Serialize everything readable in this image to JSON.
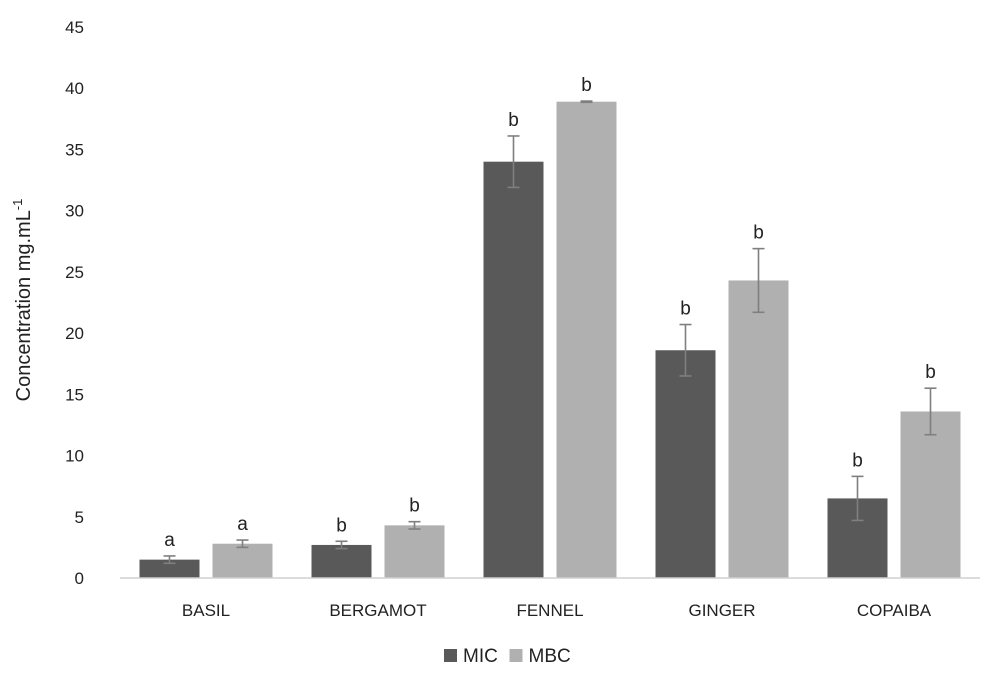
{
  "chart_data": {
    "type": "bar",
    "title": "",
    "xlabel": "",
    "ylabel": "Concentration mg.mL",
    "ylabel_superscript": "-1",
    "ylim": [
      0,
      45
    ],
    "yticks": [
      0,
      5,
      10,
      15,
      20,
      25,
      30,
      35,
      40,
      45
    ],
    "grid": false,
    "legend_position": "bottom",
    "categories": [
      "BASIL",
      "BERGAMOT",
      "FENNEL",
      "GINGER",
      "COPAIBA"
    ],
    "series": [
      {
        "name": "MIC",
        "color": "#595959",
        "values": [
          1.5,
          2.7,
          34.0,
          18.6,
          6.5
        ],
        "errors": [
          0.3,
          0.3,
          2.1,
          2.1,
          1.8
        ],
        "labels": [
          "a",
          "b",
          "b",
          "b",
          "b"
        ]
      },
      {
        "name": "MBC",
        "color": "#b0b0b0",
        "values": [
          2.8,
          4.3,
          38.9,
          24.3,
          13.6
        ],
        "errors": [
          0.3,
          0.3,
          0.05,
          2.6,
          1.9
        ],
        "labels": [
          "a",
          "b",
          "b",
          "b",
          "b"
        ]
      }
    ],
    "error_bar_color": "#7f7f7f"
  }
}
